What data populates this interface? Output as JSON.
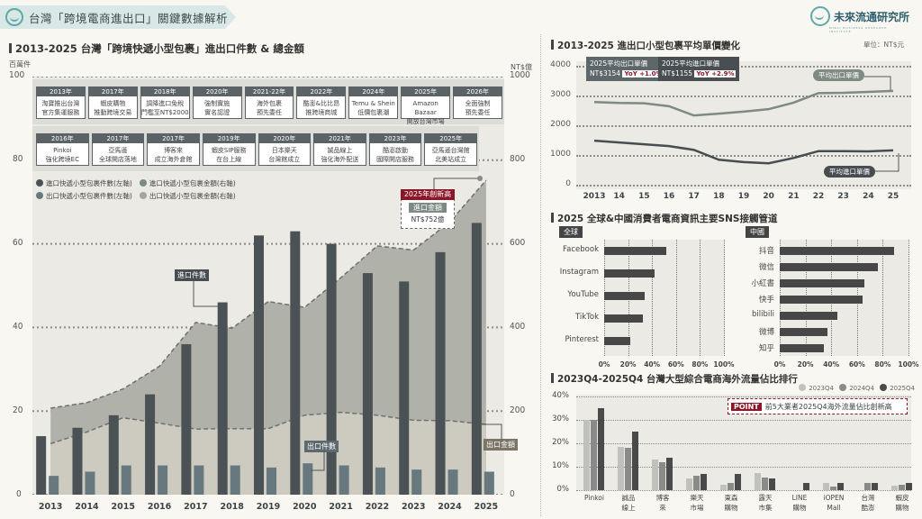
{
  "header": {
    "title": "台灣「跨境電商進出口」關鍵數據解析",
    "brand": "未來流通研究所",
    "brand_sub": "MIRAI BUSINESS RESEARCH INSTITUTE"
  },
  "left_section": {
    "title": "2013-2025 台灣「跨境快遞小型包裹」進出口件數 & 總金額",
    "left_unit": "百萬件",
    "right_unit": "NT$億",
    "timeline_top": [
      {
        "year": "2013年",
        "l1": "淘寶推出台灣",
        "l2": "官方集運服務"
      },
      {
        "year": "2017年",
        "l1": "蝦皮購物",
        "l2": "推動跨境交易"
      },
      {
        "year": "2018年",
        "l1": "調降進口免稅",
        "l2": "門檻至NT$2000"
      },
      {
        "year": "2020年",
        "l1": "強制實施",
        "l2": "實名認證"
      },
      {
        "year": "2021-22年",
        "l1": "海外包裹",
        "l2": "預先委任"
      },
      {
        "year": "2022年",
        "l1": "酷澎&比比昂",
        "l2": "推跨境商城"
      },
      {
        "year": "2024年",
        "l1": "Temu & Shein",
        "l2": "低價包裹潮"
      },
      {
        "year": "2025年",
        "l1": "Amazon Bazaar",
        "l2": "開放台灣市場"
      },
      {
        "year": "2026年",
        "l1": "全面強制",
        "l2": "預先委任"
      }
    ],
    "timeline_bottom": [
      {
        "year": "2016年",
        "l1": "Pinkoi",
        "l2": "強化跨境EC"
      },
      {
        "year": "2017年",
        "l1": "亞馬遜",
        "l2": "全球開店落地"
      },
      {
        "year": "2017年",
        "l1": "博客來",
        "l2": "成立海外倉館"
      },
      {
        "year": "2019年",
        "l1": "蝦皮SIP服務",
        "l2": "在台上線"
      },
      {
        "year": "2020年",
        "l1": "日本樂天",
        "l2": "台灣館成立"
      },
      {
        "year": "2021年",
        "l1": "誠品線上",
        "l2": "強化海外配送"
      },
      {
        "year": "2023年",
        "l1": "酷澎啟動",
        "l2": "國際開店服務"
      },
      {
        "year": "2025年",
        "l1": "亞馬遜台灣館",
        "l2": "北美站成立"
      }
    ],
    "legend": [
      {
        "label": "進口快遞小型包裹件數(左軸)",
        "color": "#4b5255"
      },
      {
        "label": "進口快遞小型包裹金額(右軸)",
        "color": "#7e8a84"
      },
      {
        "label": "出口快遞小型包裹件數(左軸)",
        "color": "#67787e"
      },
      {
        "label": "出口快遞小型包裹金額(右軸)",
        "color": "#a7a596"
      }
    ],
    "callouts": {
      "import_count": "進口件數",
      "export_count": "出口件數",
      "export_value": "出口金額"
    },
    "record": {
      "head": "2025年創新高",
      "label": "進口金額",
      "value": "NT$752億"
    }
  },
  "price_section": {
    "title": "2013-2025 進出口小型包裹平均單價變化",
    "unit": "單位：NT$元",
    "export_box": {
      "label": "2025平均出口單價",
      "value": "NT$3154",
      "yoy": "YoY +1.0%"
    },
    "import_box": {
      "label": "2025平均進口單價",
      "value": "NT$1155",
      "yoy": "YoY +2.9%"
    },
    "export_pill": "平均出口單價",
    "import_pill": "平均進口單價"
  },
  "sns_section": {
    "title": "2025 全球&中國消費者電商資訊主要SNS接觸管道",
    "global_tag": "全球",
    "china_tag": "中國"
  },
  "traffic_section": {
    "title": "2023Q4-2025Q4 台灣大型綜合電商海外流量佔比排行",
    "point_tag": "POINT",
    "point_text": "前5大業者2025Q4海外流量佔比創新高",
    "legend": [
      "2023Q4",
      "2024Q4",
      "2025Q4"
    ]
  },
  "chart_data": [
    {
      "type": "bar",
      "title": "2013-2025 台灣「跨境快遞小型包裹」進出口件數 & 總金額",
      "categories": [
        "2013",
        "2014",
        "2015",
        "2016",
        "2017",
        "2018",
        "2019",
        "2020",
        "2021",
        "2022",
        "2023",
        "2024",
        "2025"
      ],
      "series": [
        {
          "name": "進口快遞小型包裹件數(左軸)",
          "axis": "left",
          "type": "bar",
          "values": [
            14,
            16,
            19,
            24,
            36,
            46,
            62,
            63,
            60,
            53,
            51,
            58,
            65
          ]
        },
        {
          "name": "出口快遞小型包裹件數(左軸)",
          "axis": "left",
          "type": "bar",
          "values": [
            4.5,
            5.5,
            7,
            7,
            7,
            7,
            6.5,
            7.5,
            7,
            6.5,
            6,
            6,
            5.5
          ]
        },
        {
          "name": "進口快遞小型包裹金額(右軸)",
          "axis": "right",
          "type": "area",
          "values": [
            207,
            220,
            253,
            307,
            412,
            398,
            462,
            448,
            519,
            595,
            585,
            652,
            752
          ]
        },
        {
          "name": "出口快遞小型包裹金額(右軸)",
          "axis": "right",
          "type": "area",
          "values": [
            122,
            150,
            184,
            171,
            157,
            158,
            158,
            190,
            197,
            190,
            178,
            177,
            168
          ]
        }
      ],
      "ylabel_left": "百萬件",
      "ylim_left": [
        0,
        100
      ],
      "ylabel_right": "NT$億",
      "ylim_right": [
        0,
        1000
      ],
      "grid": true
    },
    {
      "type": "line",
      "title": "2013-2025 進出口小型包裹平均單價變化",
      "x": [
        "2013",
        "14",
        "15",
        "16",
        "17",
        "18",
        "19",
        "20",
        "21",
        "22",
        "23",
        "24",
        "25"
      ],
      "series": [
        {
          "name": "平均出口單價",
          "values": [
            2780,
            2750,
            2740,
            2640,
            2330,
            2390,
            2460,
            2540,
            2760,
            3080,
            3090,
            3120,
            3154
          ]
        },
        {
          "name": "平均進口單價",
          "values": [
            1480,
            1420,
            1360,
            1300,
            1170,
            840,
            760,
            720,
            900,
            1130,
            1130,
            1120,
            1155
          ]
        }
      ],
      "ylim": [
        0,
        4000
      ],
      "ylabel": "NT$元"
    },
    {
      "type": "bar",
      "title": "2025 全球 主要SNS接觸管道",
      "categories": [
        "Facebook",
        "Instagram",
        "YouTube",
        "TikTok",
        "Pinterest"
      ],
      "values": [
        52,
        42,
        34,
        32,
        22
      ],
      "xlim": [
        0,
        100
      ],
      "unit": "%"
    },
    {
      "type": "bar",
      "title": "2025 中國 主要SNS接觸管道",
      "categories": [
        "抖音",
        "微信",
        "小紅書",
        "快手",
        "bilibili",
        "微博",
        "知乎"
      ],
      "values": [
        89,
        76,
        66,
        64,
        45,
        37,
        34
      ],
      "xlim": [
        0,
        100
      ],
      "unit": "%"
    },
    {
      "type": "bar",
      "title": "2023Q4-2025Q4 台灣大型綜合電商海外流量佔比排行",
      "categories": [
        "Pinkoi",
        "誠品線上",
        "博客來",
        "樂天市場",
        "東森購物",
        "露天市集",
        "LINE購物",
        "iOPEN Mall",
        "台灣酷澎",
        "蝦皮購物"
      ],
      "series": [
        {
          "name": "2023Q4",
          "values": [
            30,
            18.5,
            13,
            5,
            2.5,
            7.5,
            0,
            3,
            0,
            2
          ]
        },
        {
          "name": "2024Q4",
          "values": [
            30,
            18,
            12,
            6,
            3,
            5.5,
            0,
            1.5,
            3,
            2.5
          ]
        },
        {
          "name": "2025Q4",
          "values": [
            35,
            25,
            14,
            7,
            7,
            5,
            3,
            3,
            3,
            3
          ]
        }
      ],
      "ylim": [
        0,
        40
      ],
      "unit": "%"
    }
  ]
}
